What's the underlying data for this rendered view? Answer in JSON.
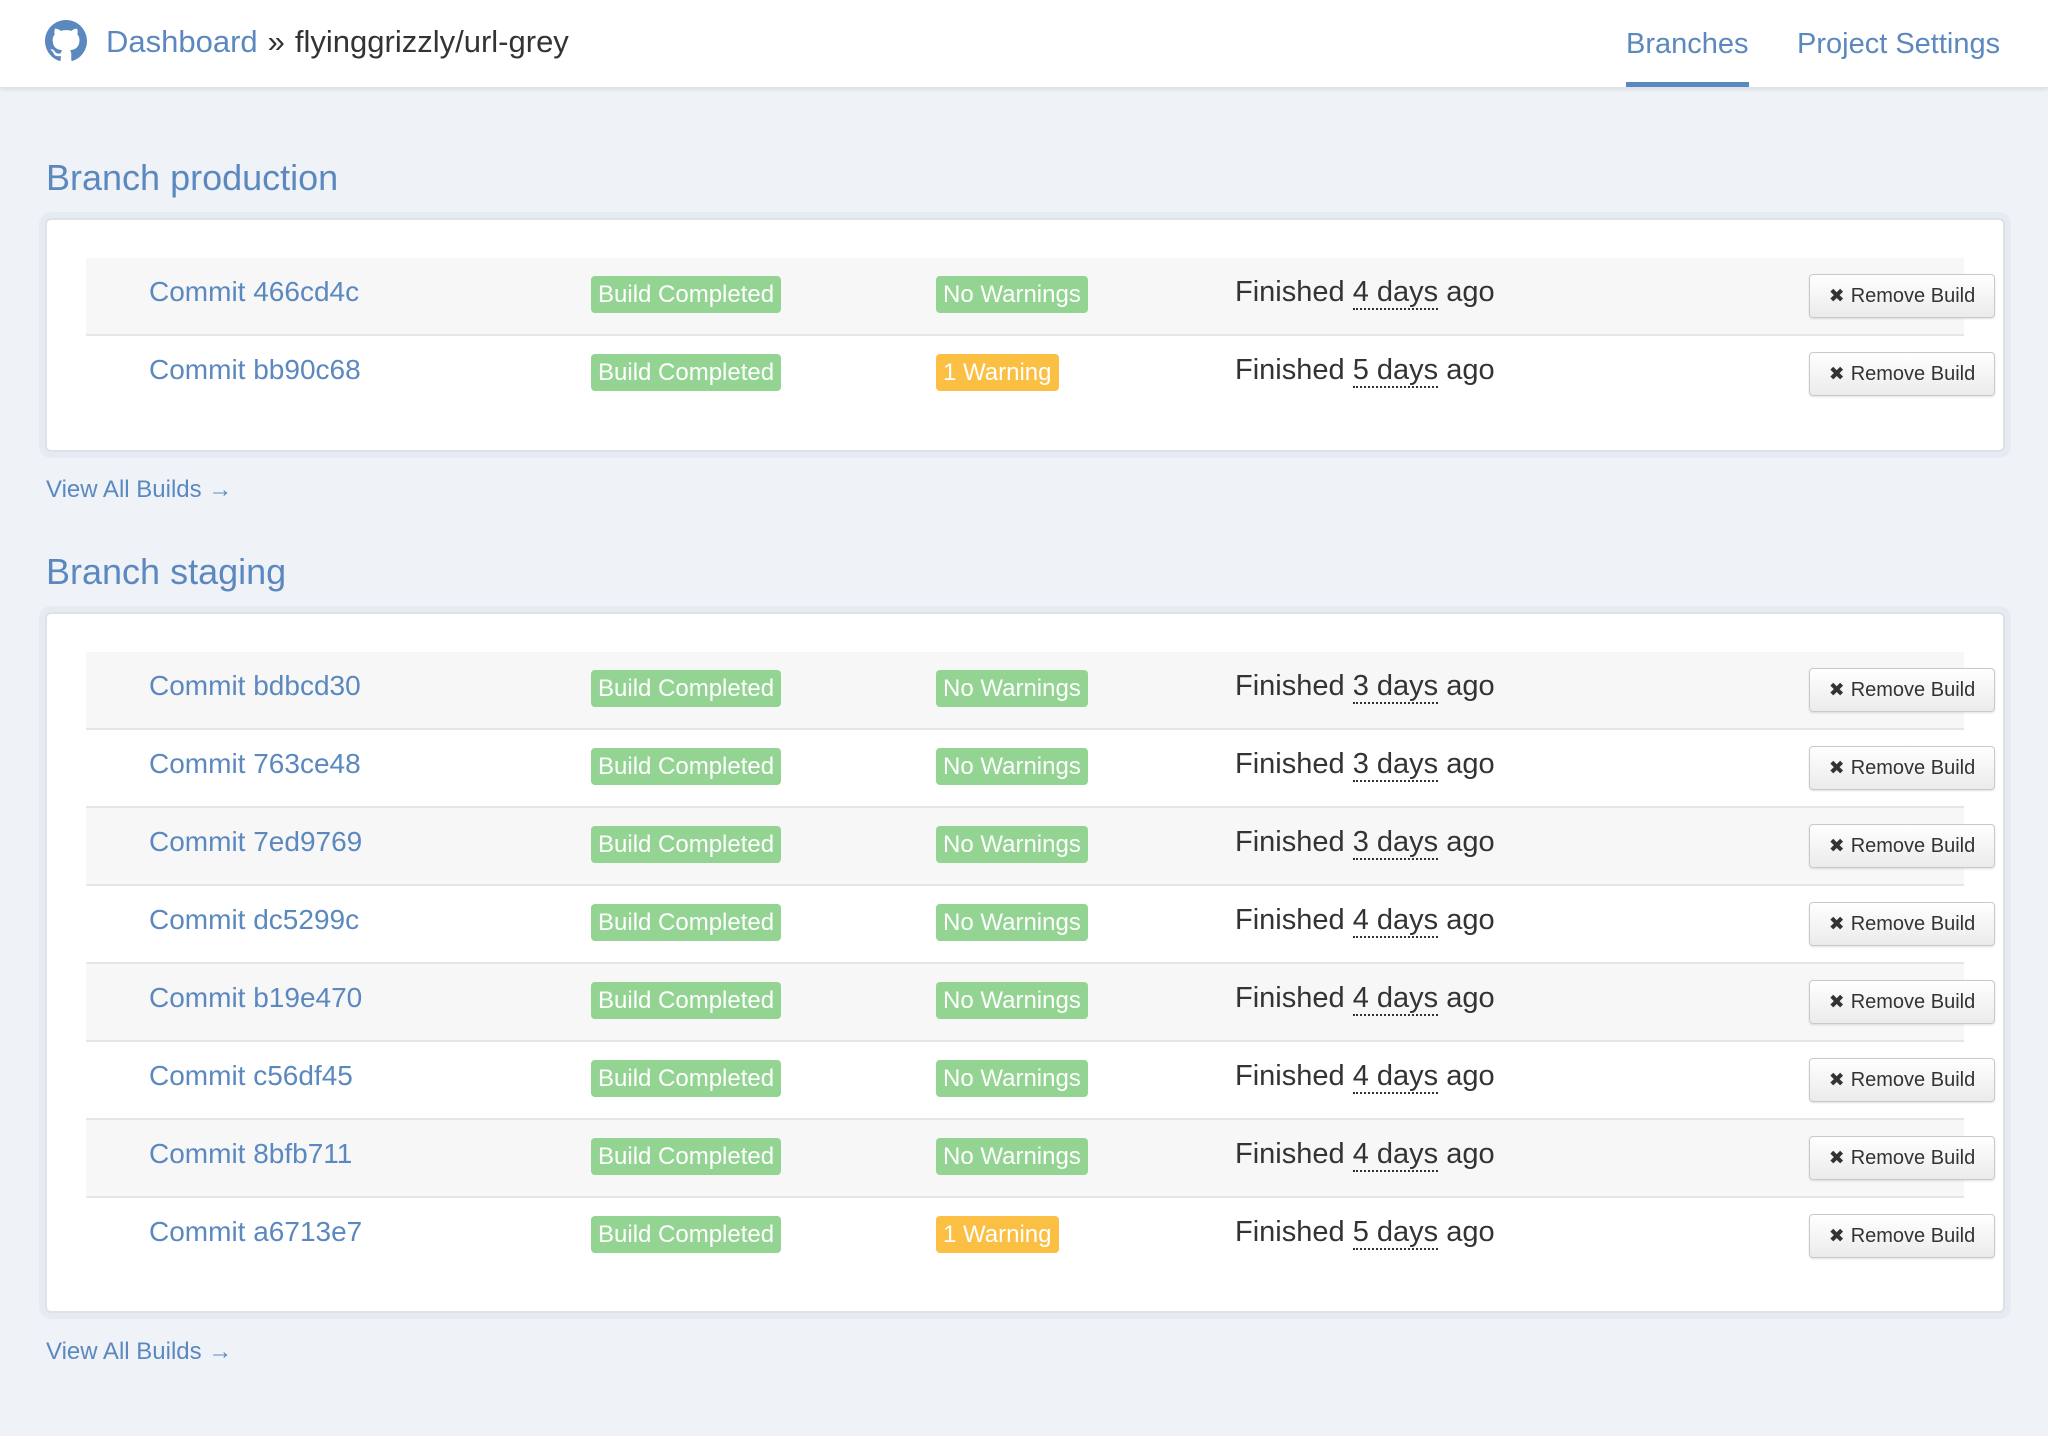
{
  "header": {
    "dashboard_label": "Dashboard",
    "separator": "»",
    "repo_name": "flyinggrizzly/url-grey",
    "nav": [
      {
        "label": "Branches",
        "active": true
      },
      {
        "label": "Project Settings",
        "active": false
      }
    ]
  },
  "branches": [
    {
      "title": "Branch production",
      "view_all_label": "View All Builds →",
      "builds": [
        {
          "commit": "Commit 466cd4c",
          "status": "Build Completed",
          "warnings": "No Warnings",
          "warning_level": "none",
          "finished_prefix": "Finished",
          "finished_time": "4 days",
          "finished_suffix": "ago",
          "remove_label": "Remove Build"
        },
        {
          "commit": "Commit bb90c68",
          "status": "Build Completed",
          "warnings": "1 Warning",
          "warning_level": "warn",
          "finished_prefix": "Finished",
          "finished_time": "5 days",
          "finished_suffix": "ago",
          "remove_label": "Remove Build"
        }
      ]
    },
    {
      "title": "Branch staging",
      "view_all_label": "View All Builds →",
      "builds": [
        {
          "commit": "Commit bdbcd30",
          "status": "Build Completed",
          "warnings": "No Warnings",
          "warning_level": "none",
          "finished_prefix": "Finished",
          "finished_time": "3 days",
          "finished_suffix": "ago",
          "remove_label": "Remove Build"
        },
        {
          "commit": "Commit 763ce48",
          "status": "Build Completed",
          "warnings": "No Warnings",
          "warning_level": "none",
          "finished_prefix": "Finished",
          "finished_time": "3 days",
          "finished_suffix": "ago",
          "remove_label": "Remove Build"
        },
        {
          "commit": "Commit 7ed9769",
          "status": "Build Completed",
          "warnings": "No Warnings",
          "warning_level": "none",
          "finished_prefix": "Finished",
          "finished_time": "3 days",
          "finished_suffix": "ago",
          "remove_label": "Remove Build"
        },
        {
          "commit": "Commit dc5299c",
          "status": "Build Completed",
          "warnings": "No Warnings",
          "warning_level": "none",
          "finished_prefix": "Finished",
          "finished_time": "4 days",
          "finished_suffix": "ago",
          "remove_label": "Remove Build"
        },
        {
          "commit": "Commit b19e470",
          "status": "Build Completed",
          "warnings": "No Warnings",
          "warning_level": "none",
          "finished_prefix": "Finished",
          "finished_time": "4 days",
          "finished_suffix": "ago",
          "remove_label": "Remove Build"
        },
        {
          "commit": "Commit c56df45",
          "status": "Build Completed",
          "warnings": "No Warnings",
          "warning_level": "none",
          "finished_prefix": "Finished",
          "finished_time": "4 days",
          "finished_suffix": "ago",
          "remove_label": "Remove Build"
        },
        {
          "commit": "Commit 8bfb711",
          "status": "Build Completed",
          "warnings": "No Warnings",
          "warning_level": "none",
          "finished_prefix": "Finished",
          "finished_time": "4 days",
          "finished_suffix": "ago",
          "remove_label": "Remove Build"
        },
        {
          "commit": "Commit a6713e7",
          "status": "Build Completed",
          "warnings": "1 Warning",
          "warning_level": "warn",
          "finished_prefix": "Finished",
          "finished_time": "5 days",
          "finished_suffix": "ago",
          "remove_label": "Remove Build"
        }
      ]
    }
  ],
  "icons": {
    "logo": "github-icon",
    "remove": "close-icon"
  },
  "colors": {
    "link": "#5b88bf",
    "success": "#93d493",
    "warning": "#fbbf44",
    "background": "#eff3f8"
  }
}
